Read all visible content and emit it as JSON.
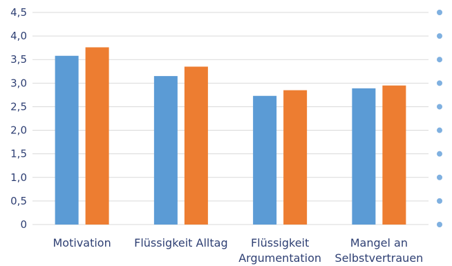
{
  "chart_data": {
    "type": "bar",
    "categories": [
      [
        "Motivation"
      ],
      [
        "Flüssigkeit Alltag"
      ],
      [
        "Flüssigkeit",
        "Argumentation"
      ],
      [
        "Mangel an",
        "Selbstvertrauen"
      ]
    ],
    "series": [
      {
        "values": [
          3.58,
          3.15,
          2.73,
          2.89
        ],
        "color": "#5b9bd5"
      },
      {
        "values": [
          3.76,
          3.35,
          2.85,
          2.95
        ],
        "color": "#ed7d31"
      }
    ],
    "ylim": [
      0,
      4.5
    ],
    "yticks": [
      "0",
      "0,5",
      "1,0",
      "1,5",
      "2,0",
      "2,5",
      "3,0",
      "3,5",
      "4,0",
      "4,5"
    ],
    "grid": true,
    "right_axis_markers": true,
    "right_marker_color": "#7fb0e0"
  }
}
